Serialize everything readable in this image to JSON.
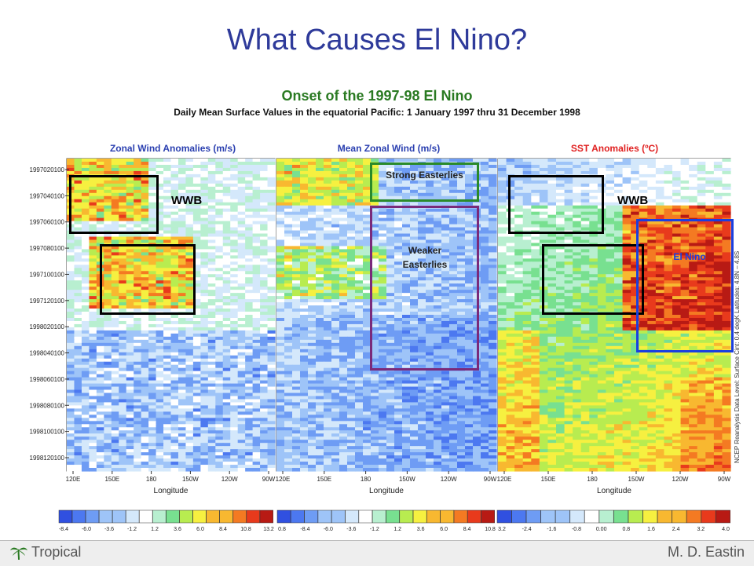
{
  "slide": {
    "title": "What Causes El Nino?",
    "subtitle": "Onset of the 1997-98 El Nino",
    "caption": "Daily Mean Surface Values in the equatorial Pacific:  1 January 1997 thru 31 December 1998",
    "footer_left": "Tropical",
    "footer_right": "M. D. Eastin"
  },
  "colors": {
    "title": "#2e3a9a",
    "subtitle": "#2a7a22",
    "panel_wind_header": "#2a3fb0",
    "panel_sst_header": "#e02020",
    "box_black": "#000000",
    "box_green": "#2a8a2a",
    "box_purple": "#7a2a7a",
    "box_blue": "#1a3fe0"
  },
  "annotations": {
    "wwb_left": "WWB",
    "wwb_right": "WWB",
    "strong_easterlies": "Strong Easterlies",
    "weaker_easterlies": "Weaker Easterlies",
    "el_nino": "El Nino",
    "side_label": "NCEP Reanalysis Data    Level: Surface    Cint: 0.4 degK    Latitudes: 4.8N – 4.8S"
  },
  "chart_data": [
    {
      "type": "heatmap",
      "title": "Zonal Wind Anomalies (m/s)",
      "xlabel": "Longitude",
      "ylabel": "",
      "x_ticks": [
        "120E",
        "150E",
        "180",
        "150W",
        "120W",
        "90W"
      ],
      "y_ticks": [
        "1997020100",
        "1997040100",
        "1997060100",
        "1997080100",
        "1997100100",
        "1997120100",
        "1998020100",
        "1998040100",
        "1998060100",
        "1998080100",
        "1998100100",
        "1998120100"
      ],
      "colorbar": [
        "-8.4",
        "-6.0",
        "-3.6",
        "-1.2",
        "1.2",
        "3.6",
        "6.0",
        "8.4",
        "10.8",
        "13.2"
      ]
    },
    {
      "type": "heatmap",
      "title": "Mean Zonal Wind (m/s)",
      "xlabel": "Longitude",
      "ylabel": "",
      "x_ticks": [
        "120E",
        "150E",
        "180",
        "150W",
        "120W",
        "90W"
      ],
      "colorbar": [
        "0.8",
        "-8.4",
        "-6.0",
        "-3.6",
        "-1.2",
        "1.2",
        "3.6",
        "6.0",
        "8.4",
        "10.8"
      ]
    },
    {
      "type": "heatmap",
      "title": "SST Anomalies (ºC)",
      "xlabel": "Longitude",
      "ylabel": "",
      "x_ticks": [
        "120E",
        "150E",
        "180",
        "150W",
        "120W",
        "90W"
      ],
      "colorbar": [
        "3.2",
        "-2.4",
        "-1.6",
        "-0.8",
        "0.00",
        "0.8",
        "1.6",
        "2.4",
        "3.2",
        "4.0"
      ]
    }
  ]
}
